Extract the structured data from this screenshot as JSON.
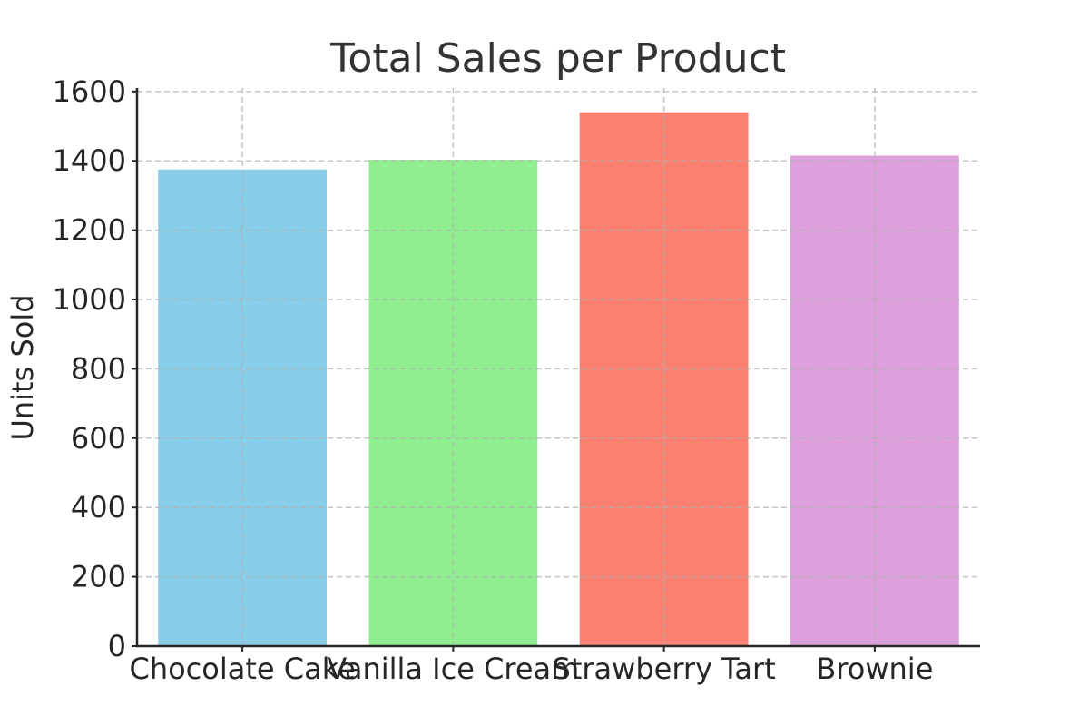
{
  "chart_data": {
    "type": "bar",
    "title": "Total Sales per Product",
    "xlabel": "",
    "ylabel": "Units Sold",
    "categories": [
      "Chocolate Cake",
      "Vanilla Ice Cream",
      "Strawberry Tart",
      "Brownie"
    ],
    "values": [
      1375,
      1403,
      1540,
      1415
    ],
    "colors": [
      "#87ceeb",
      "#90ee90",
      "#fa8072",
      "#dda0dd"
    ],
    "ylim": [
      0,
      1610
    ],
    "yticks": [
      "0",
      "200",
      "400",
      "600",
      "800",
      "1000",
      "1200",
      "1400",
      "1600"
    ],
    "grid": true,
    "legend": "none"
  }
}
